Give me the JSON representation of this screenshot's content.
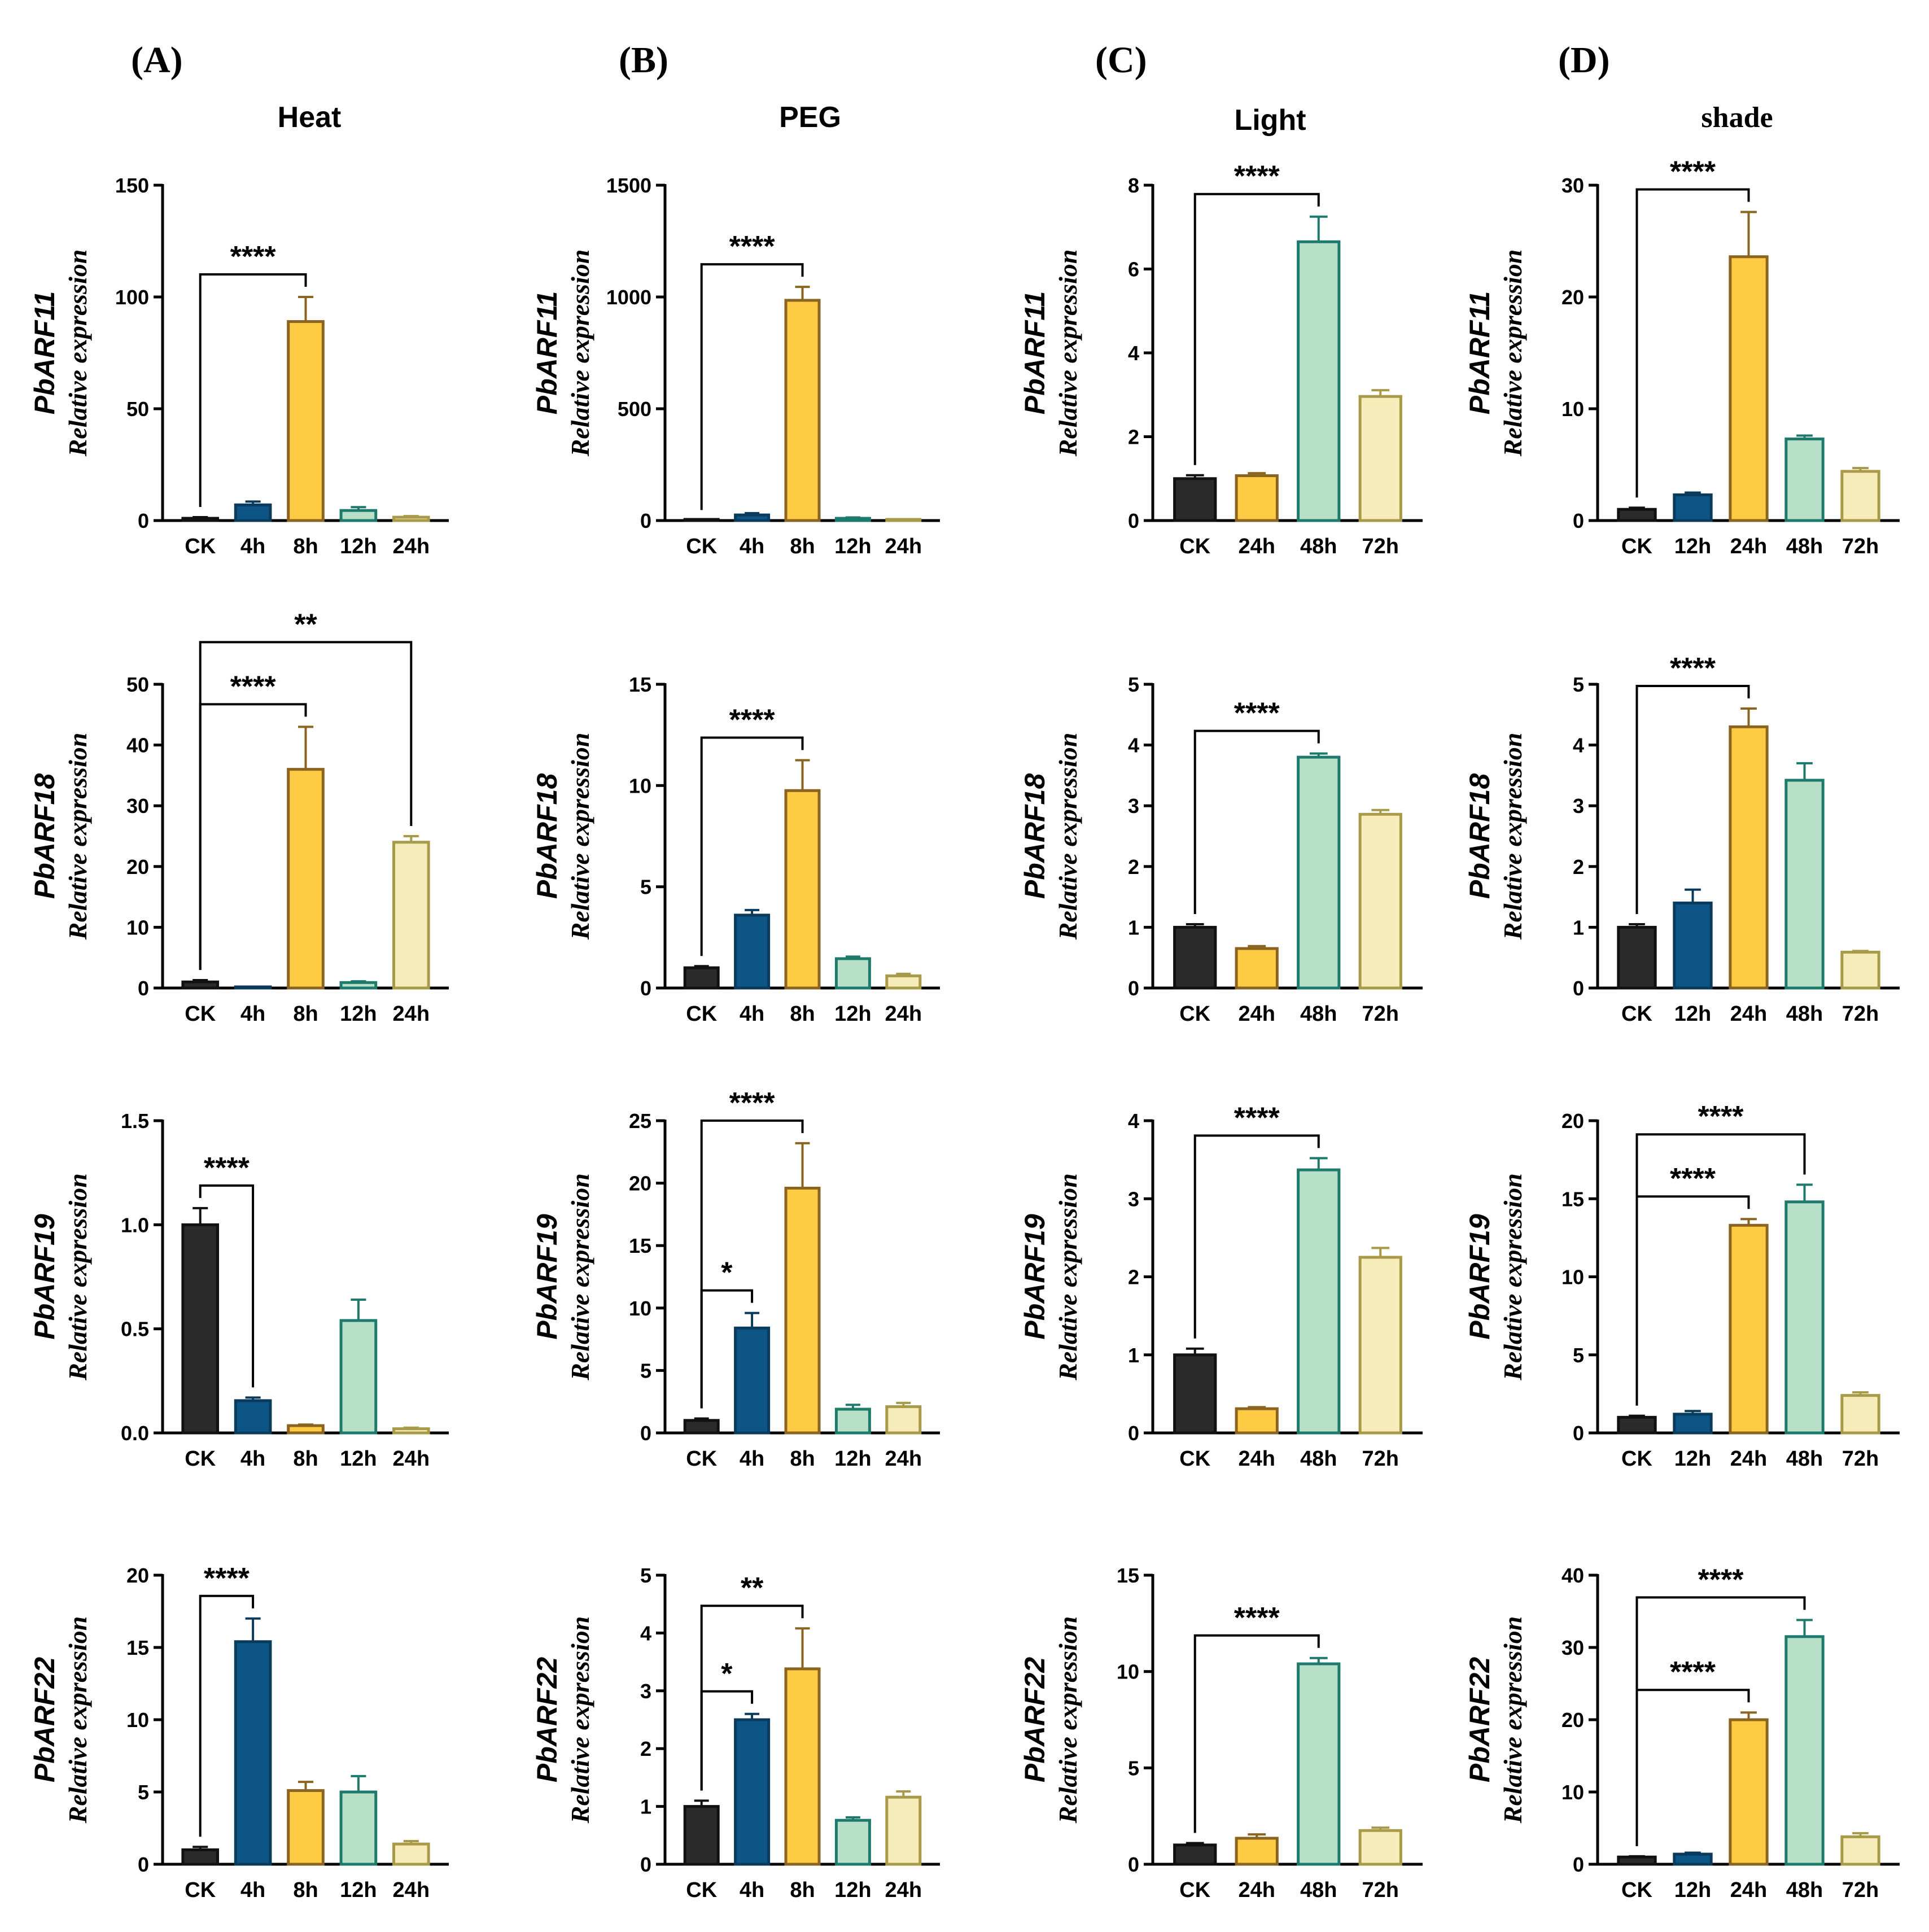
{
  "figure": {
    "columns": [
      {
        "letter": "(A)",
        "title": "Heat"
      },
      {
        "letter": "(B)",
        "title": "PEG"
      },
      {
        "letter": "(C)",
        "title": "Light"
      },
      {
        "letter": "(D)",
        "title": "shade"
      }
    ],
    "colors": {
      "CK": "#2b2b2b",
      "t1": "#0d5585",
      "t2": "#fdcb44",
      "t3": "#b8dfc8",
      "t4": "#f5ecb9",
      "edge_CK": "#111111",
      "edge_t1": "#0a3a5c",
      "edge_t2": "#8a6420",
      "edge_t3": "#1f7a6e",
      "edge_t4": "#a89a48"
    }
  },
  "chart_data": [
    {
      "id": "A1",
      "type": "bar",
      "column": 0,
      "row": 0,
      "gene": "PbARF11",
      "ylabel": "Relative expression",
      "categories": [
        "CK",
        "4h",
        "8h",
        "12h",
        "24h"
      ],
      "values": [
        1,
        7,
        89,
        4.5,
        1.5
      ],
      "errors": [
        0.5,
        1.5,
        11,
        1.5,
        0.5
      ],
      "ylim": [
        0,
        150
      ],
      "yticks": [
        0,
        50,
        100,
        150
      ],
      "tick_labels": [
        "0",
        "50",
        "100",
        "150"
      ],
      "significance": [
        {
          "from": 0,
          "to": 2,
          "label": "****"
        }
      ]
    },
    {
      "id": "B1",
      "type": "bar",
      "column": 1,
      "row": 0,
      "gene": "PbARF11",
      "ylabel": "Relative expression",
      "categories": [
        "CK",
        "4h",
        "8h",
        "12h",
        "24h"
      ],
      "values": [
        1,
        25,
        985,
        10,
        3
      ],
      "errors": [
        0.5,
        8,
        60,
        4,
        1
      ],
      "ylim": [
        0,
        1500
      ],
      "yticks": [
        0,
        500,
        1000,
        1500
      ],
      "tick_labels": [
        "0",
        "500",
        "1000",
        "1500"
      ],
      "significance": [
        {
          "from": 0,
          "to": 2,
          "label": "****"
        }
      ]
    },
    {
      "id": "C1",
      "type": "bar",
      "column": 2,
      "row": 0,
      "gene": "PbARF11",
      "ylabel": "Relative expression",
      "categories": [
        "CK",
        "24h",
        "48h",
        "72h"
      ],
      "values": [
        1,
        1.07,
        6.65,
        2.96
      ],
      "errors": [
        0.08,
        0.06,
        0.6,
        0.15
      ],
      "ylim": [
        0,
        8
      ],
      "yticks": [
        0,
        2,
        4,
        6,
        8
      ],
      "tick_labels": [
        "0",
        "2",
        "4",
        "6",
        "8"
      ],
      "significance": [
        {
          "from": 0,
          "to": 2,
          "label": "****"
        }
      ]
    },
    {
      "id": "D1",
      "type": "bar",
      "column": 3,
      "row": 0,
      "gene": "PbARF11",
      "ylabel": "Relative expression",
      "categories": [
        "CK",
        "12h",
        "24h",
        "48h",
        "72h"
      ],
      "values": [
        1,
        2.3,
        23.6,
        7.3,
        4.4
      ],
      "errors": [
        0.15,
        0.2,
        4,
        0.3,
        0.3
      ],
      "ylim": [
        0,
        30
      ],
      "yticks": [
        0,
        10,
        20,
        30
      ],
      "tick_labels": [
        "0",
        "10",
        "20",
        "30"
      ],
      "significance": [
        {
          "from": 0,
          "to": 2,
          "label": "****"
        }
      ]
    },
    {
      "id": "A2",
      "type": "bar",
      "column": 0,
      "row": 1,
      "gene": "PbARF18",
      "ylabel": "Relative expression",
      "categories": [
        "CK",
        "4h",
        "8h",
        "12h",
        "24h"
      ],
      "values": [
        1,
        0.1,
        36,
        0.9,
        24
      ],
      "errors": [
        0.3,
        0.05,
        7,
        0.2,
        1
      ],
      "ylim": [
        0,
        50
      ],
      "yticks": [
        0,
        10,
        20,
        30,
        40,
        50
      ],
      "tick_labels": [
        "0",
        "10",
        "20",
        "30",
        "40",
        "50"
      ],
      "significance": [
        {
          "from": 0,
          "to": 2,
          "label": "****"
        },
        {
          "from": 0,
          "to": 4,
          "label": "**"
        }
      ]
    },
    {
      "id": "B2",
      "type": "bar",
      "column": 1,
      "row": 1,
      "gene": "PbARF18",
      "ylabel": "Relative expression",
      "categories": [
        "CK",
        "4h",
        "8h",
        "12h",
        "24h"
      ],
      "values": [
        1,
        3.6,
        9.75,
        1.45,
        0.6
      ],
      "errors": [
        0.08,
        0.25,
        1.5,
        0.1,
        0.1
      ],
      "ylim": [
        0,
        15
      ],
      "yticks": [
        0,
        5,
        10,
        15
      ],
      "tick_labels": [
        "0",
        "5",
        "10",
        "15"
      ],
      "significance": [
        {
          "from": 0,
          "to": 2,
          "label": "****"
        }
      ]
    },
    {
      "id": "C2",
      "type": "bar",
      "column": 2,
      "row": 1,
      "gene": "PbARF18",
      "ylabel": "Relative expression",
      "categories": [
        "CK",
        "24h",
        "48h",
        "72h"
      ],
      "values": [
        1,
        0.65,
        3.8,
        2.86
      ],
      "errors": [
        0.05,
        0.04,
        0.06,
        0.07
      ],
      "ylim": [
        0,
        5
      ],
      "yticks": [
        0,
        1,
        2,
        3,
        4,
        5
      ],
      "tick_labels": [
        "0",
        "1",
        "2",
        "3",
        "4",
        "5"
      ],
      "significance": [
        {
          "from": 0,
          "to": 2,
          "label": "****"
        }
      ]
    },
    {
      "id": "D2",
      "type": "bar",
      "column": 3,
      "row": 1,
      "gene": "PbARF18",
      "ylabel": "Relative expression",
      "categories": [
        "CK",
        "12h",
        "24h",
        "48h",
        "72h"
      ],
      "values": [
        1,
        1.4,
        4.3,
        3.42,
        0.59
      ],
      "errors": [
        0.05,
        0.22,
        0.3,
        0.28,
        0.02
      ],
      "ylim": [
        0,
        5
      ],
      "yticks": [
        0,
        1,
        2,
        3,
        4,
        5
      ],
      "tick_labels": [
        "0",
        "1",
        "2",
        "3",
        "4",
        "5"
      ],
      "significance": [
        {
          "from": 0,
          "to": 2,
          "label": "****"
        }
      ]
    },
    {
      "id": "A3",
      "type": "bar",
      "column": 0,
      "row": 2,
      "gene": "PbARF19",
      "ylabel": "Relative expression",
      "categories": [
        "CK",
        "4h",
        "8h",
        "12h",
        "24h"
      ],
      "values": [
        1,
        0.155,
        0.035,
        0.54,
        0.02
      ],
      "errors": [
        0.08,
        0.015,
        0.005,
        0.1,
        0.005
      ],
      "ylim": [
        0,
        1.5
      ],
      "yticks": [
        0,
        0.5,
        1,
        1.5
      ],
      "tick_labels": [
        "0.0",
        "0.5",
        "1.0",
        "1.5"
      ],
      "significance": [
        {
          "from": 0,
          "to": 1,
          "label": "****"
        }
      ]
    },
    {
      "id": "B3",
      "type": "bar",
      "column": 1,
      "row": 2,
      "gene": "PbARF19",
      "ylabel": "Relative expression",
      "categories": [
        "CK",
        "4h",
        "8h",
        "12h",
        "24h"
      ],
      "values": [
        1,
        8.4,
        19.6,
        1.9,
        2.1
      ],
      "errors": [
        0.15,
        1.2,
        3.6,
        0.35,
        0.3
      ],
      "ylim": [
        0,
        25
      ],
      "yticks": [
        0,
        5,
        10,
        15,
        20,
        25
      ],
      "tick_labels": [
        "0",
        "5",
        "10",
        "15",
        "20",
        "25"
      ],
      "significance": [
        {
          "from": 0,
          "to": 1,
          "label": "*"
        },
        {
          "from": 0,
          "to": 2,
          "label": "****"
        }
      ]
    },
    {
      "id": "C3",
      "type": "bar",
      "column": 2,
      "row": 2,
      "gene": "PbARF19",
      "ylabel": "Relative expression",
      "categories": [
        "CK",
        "24h",
        "48h",
        "72h"
      ],
      "values": [
        1,
        0.31,
        3.37,
        2.25
      ],
      "errors": [
        0.08,
        0.02,
        0.15,
        0.12
      ],
      "ylim": [
        0,
        4
      ],
      "yticks": [
        0,
        1,
        2,
        3,
        4
      ],
      "tick_labels": [
        "0",
        "1",
        "2",
        "3",
        "4"
      ],
      "significance": [
        {
          "from": 0,
          "to": 2,
          "label": "****"
        }
      ]
    },
    {
      "id": "D3",
      "type": "bar",
      "column": 3,
      "row": 2,
      "gene": "PbARF19",
      "ylabel": "Relative expression",
      "categories": [
        "CK",
        "12h",
        "24h",
        "48h",
        "72h"
      ],
      "values": [
        1,
        1.2,
        13.3,
        14.8,
        2.4
      ],
      "errors": [
        0.1,
        0.2,
        0.4,
        1.1,
        0.2
      ],
      "ylim": [
        0,
        20
      ],
      "yticks": [
        0,
        5,
        10,
        15,
        20
      ],
      "tick_labels": [
        "0",
        "5",
        "10",
        "15",
        "20"
      ],
      "significance": [
        {
          "from": 0,
          "to": 2,
          "label": "****"
        },
        {
          "from": 0,
          "to": 3,
          "label": "****"
        }
      ]
    },
    {
      "id": "A4",
      "type": "bar",
      "column": 0,
      "row": 3,
      "gene": "PbARF22",
      "ylabel": "Relative expression",
      "categories": [
        "CK",
        "4h",
        "8h",
        "12h",
        "24h"
      ],
      "values": [
        1,
        15.4,
        5.1,
        5,
        1.4
      ],
      "errors": [
        0.2,
        1.6,
        0.6,
        1.1,
        0.2
      ],
      "ylim": [
        0,
        20
      ],
      "yticks": [
        0,
        5,
        10,
        15,
        20
      ],
      "tick_labels": [
        "0",
        "5",
        "10",
        "15",
        "20"
      ],
      "significance": [
        {
          "from": 0,
          "to": 1,
          "label": "****"
        }
      ]
    },
    {
      "id": "B4",
      "type": "bar",
      "column": 1,
      "row": 3,
      "gene": "PbARF22",
      "ylabel": "Relative expression",
      "categories": [
        "CK",
        "4h",
        "8h",
        "12h",
        "24h"
      ],
      "values": [
        1,
        2.5,
        3.38,
        0.76,
        1.16
      ],
      "errors": [
        0.1,
        0.1,
        0.7,
        0.05,
        0.1
      ],
      "ylim": [
        0,
        5
      ],
      "yticks": [
        0,
        1,
        2,
        3,
        4,
        5
      ],
      "tick_labels": [
        "0",
        "1",
        "2",
        "3",
        "4",
        "5"
      ],
      "significance": [
        {
          "from": 0,
          "to": 1,
          "label": "*"
        },
        {
          "from": 0,
          "to": 2,
          "label": "**"
        }
      ]
    },
    {
      "id": "C4",
      "type": "bar",
      "column": 2,
      "row": 3,
      "gene": "PbARF22",
      "ylabel": "Relative expression",
      "categories": [
        "CK",
        "24h",
        "48h",
        "72h"
      ],
      "values": [
        1,
        1.35,
        10.4,
        1.75
      ],
      "errors": [
        0.1,
        0.2,
        0.3,
        0.15
      ],
      "ylim": [
        0,
        15
      ],
      "yticks": [
        0,
        5,
        10,
        15
      ],
      "tick_labels": [
        "0",
        "5",
        "10",
        "15"
      ],
      "significance": [
        {
          "from": 0,
          "to": 2,
          "label": "****"
        }
      ]
    },
    {
      "id": "D4",
      "type": "bar",
      "column": 3,
      "row": 3,
      "gene": "PbARF22",
      "ylabel": "Relative expression",
      "categories": [
        "CK",
        "12h",
        "24h",
        "48h",
        "72h"
      ],
      "values": [
        1,
        1.4,
        20,
        31.5,
        3.8
      ],
      "errors": [
        0.1,
        0.2,
        1,
        2.3,
        0.5
      ],
      "ylim": [
        0,
        40
      ],
      "yticks": [
        0,
        10,
        20,
        30,
        40
      ],
      "tick_labels": [
        "0",
        "10",
        "20",
        "30",
        "40"
      ],
      "significance": [
        {
          "from": 0,
          "to": 2,
          "label": "****"
        },
        {
          "from": 0,
          "to": 3,
          "label": "****"
        }
      ]
    }
  ]
}
